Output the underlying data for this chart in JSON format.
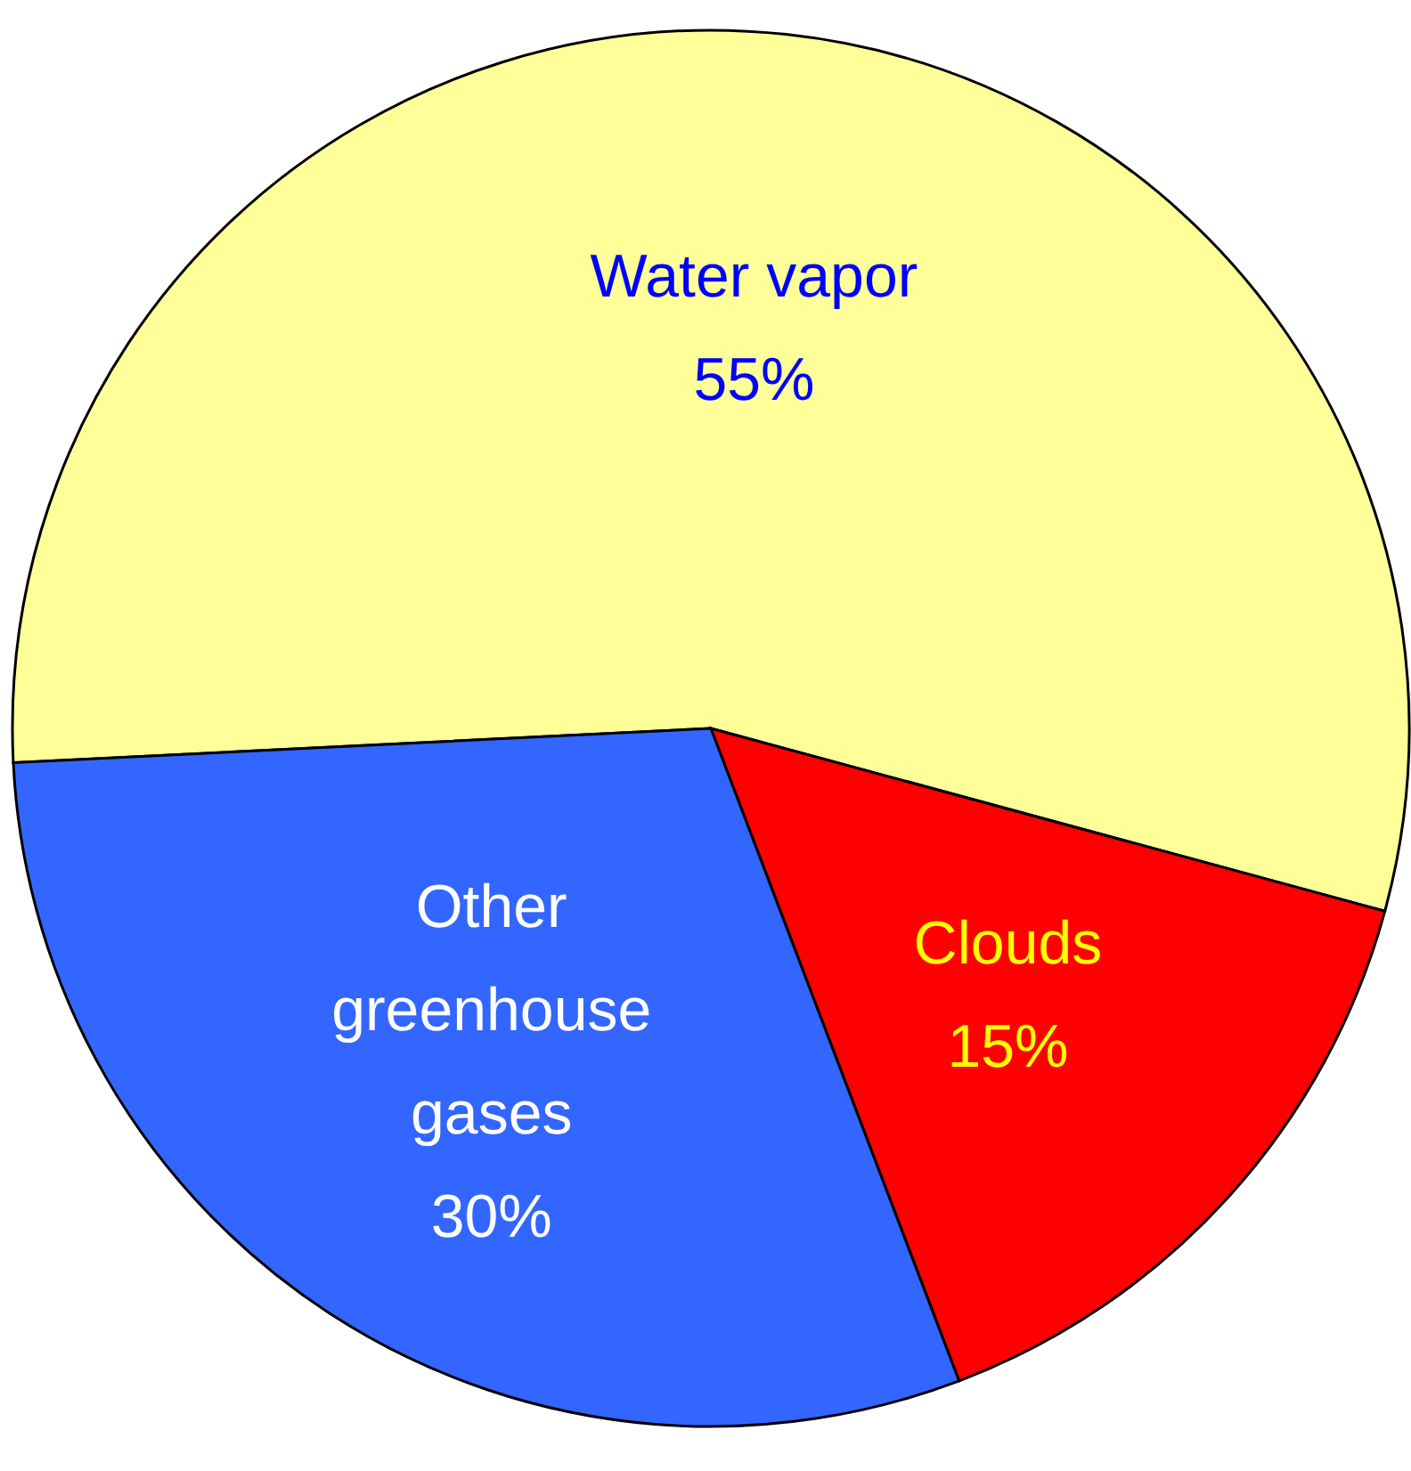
{
  "chart_data": {
    "type": "pie",
    "categories": [
      "Water vapor",
      "Clouds",
      "Other greenhouse gases"
    ],
    "values": [
      55,
      15,
      30
    ],
    "colors": [
      "#ffff99",
      "#ff0000",
      "#3366ff"
    ],
    "value_labels": [
      "55%",
      "15%",
      "30%"
    ],
    "legend": false
  }
}
